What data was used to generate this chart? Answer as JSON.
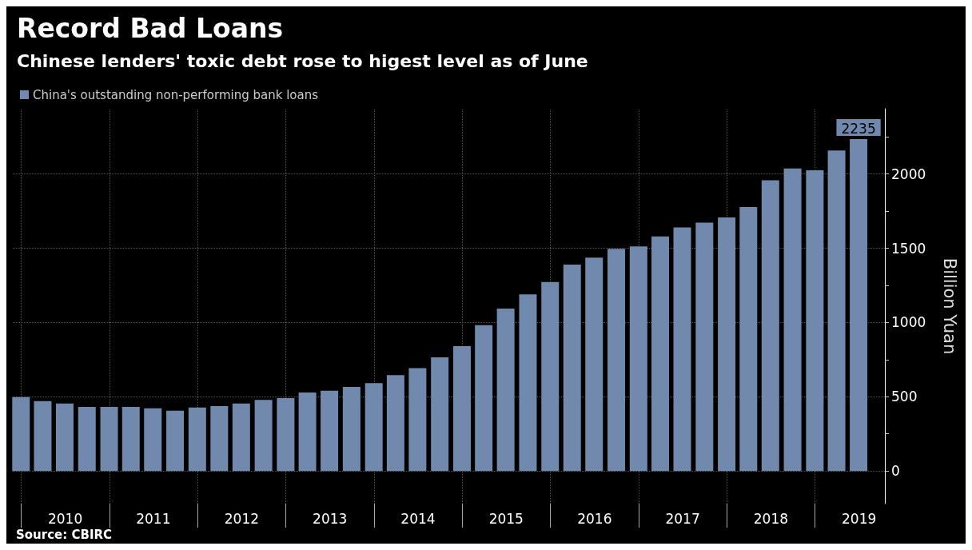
{
  "chart_data": {
    "type": "bar",
    "title": "Record Bad Loans",
    "subtitle": "Chinese lenders' toxic debt rose to higest level as of June",
    "x": [
      "2009-12-31",
      "2010-03-31",
      "2010-06-30",
      "2010-09-30",
      "2010-12-31",
      "2011-03-31",
      "2011-06-30",
      "2011-09-30",
      "2011-12-31",
      "2012-03-31",
      "2012-06-30",
      "2012-09-30",
      "2012-12-31",
      "2013-03-31",
      "2013-06-30",
      "2013-09-30",
      "2013-12-31",
      "2014-03-31",
      "2014-06-30",
      "2014-09-30",
      "2014-12-31",
      "2015-03-31",
      "2015-06-30",
      "2015-09-30",
      "2015-12-31",
      "2016-03-31",
      "2016-06-30",
      "2016-09-30",
      "2016-12-31",
      "2017-03-31",
      "2017-06-30",
      "2017-09-30",
      "2017-12-31",
      "2018-03-31",
      "2018-06-30",
      "2018-09-30",
      "2018-12-31",
      "2019-03-31",
      "2019-06-30"
    ],
    "series": [
      {
        "name": "China's outstanding non-performing bank loans",
        "color": "#7089ad",
        "values": [
          498,
          470,
          455,
          432,
          432,
          432,
          422,
          406,
          427,
          437,
          455,
          479,
          491,
          528,
          540,
          566,
          592,
          646,
          693,
          766,
          841,
          982,
          1094,
          1190,
          1273,
          1390,
          1437,
          1496,
          1512,
          1580,
          1640,
          1673,
          1708,
          1778,
          1958,
          2037,
          2026,
          2159,
          2235
        ],
        "value_labels": [
          null,
          null,
          null,
          null,
          null,
          null,
          null,
          null,
          null,
          null,
          null,
          null,
          null,
          null,
          null,
          null,
          null,
          null,
          null,
          null,
          null,
          null,
          null,
          null,
          null,
          null,
          null,
          null,
          null,
          null,
          null,
          null,
          null,
          null,
          null,
          null,
          null,
          null,
          "2235"
        ]
      }
    ],
    "ylabel": "Billion Yuan",
    "xlim": [
      "2009-11-27",
      "2019-10-17"
    ],
    "xticks": [
      {
        "value": "2010-01-01",
        "label": null
      },
      {
        "value": "2010-07-02",
        "label": "2010"
      },
      {
        "value": "2011-01-01",
        "label": null
      },
      {
        "value": "2011-07-02",
        "label": "2011"
      },
      {
        "value": "2012-01-01",
        "label": null
      },
      {
        "value": "2012-07-02",
        "label": "2012"
      },
      {
        "value": "2013-01-01",
        "label": null
      },
      {
        "value": "2013-07-02",
        "label": "2013"
      },
      {
        "value": "2014-01-01",
        "label": null
      },
      {
        "value": "2014-07-02",
        "label": "2014"
      },
      {
        "value": "2015-01-01",
        "label": null
      },
      {
        "value": "2015-07-02",
        "label": "2015"
      },
      {
        "value": "2016-01-01",
        "label": null
      },
      {
        "value": "2016-07-02",
        "label": "2016"
      },
      {
        "value": "2017-01-01",
        "label": null
      },
      {
        "value": "2017-07-02",
        "label": "2017"
      },
      {
        "value": "2018-01-01",
        "label": null
      },
      {
        "value": "2018-07-02",
        "label": "2018"
      },
      {
        "value": "2019-01-01",
        "label": null
      },
      {
        "value": "2019-07-02",
        "label": "2019"
      }
    ],
    "ylim": [
      -220,
      2440
    ],
    "yticks": [
      0,
      {
        "value": 250,
        "label": null
      },
      500,
      {
        "value": 750,
        "label": null
      },
      1000,
      {
        "value": 1250,
        "label": null
      },
      1500,
      {
        "value": 1750,
        "label": null
      },
      2000,
      {
        "value": 2250,
        "label": null
      }
    ],
    "grid": true,
    "legend": "top left",
    "annotations": [
      "Source: CBIRC"
    ]
  }
}
